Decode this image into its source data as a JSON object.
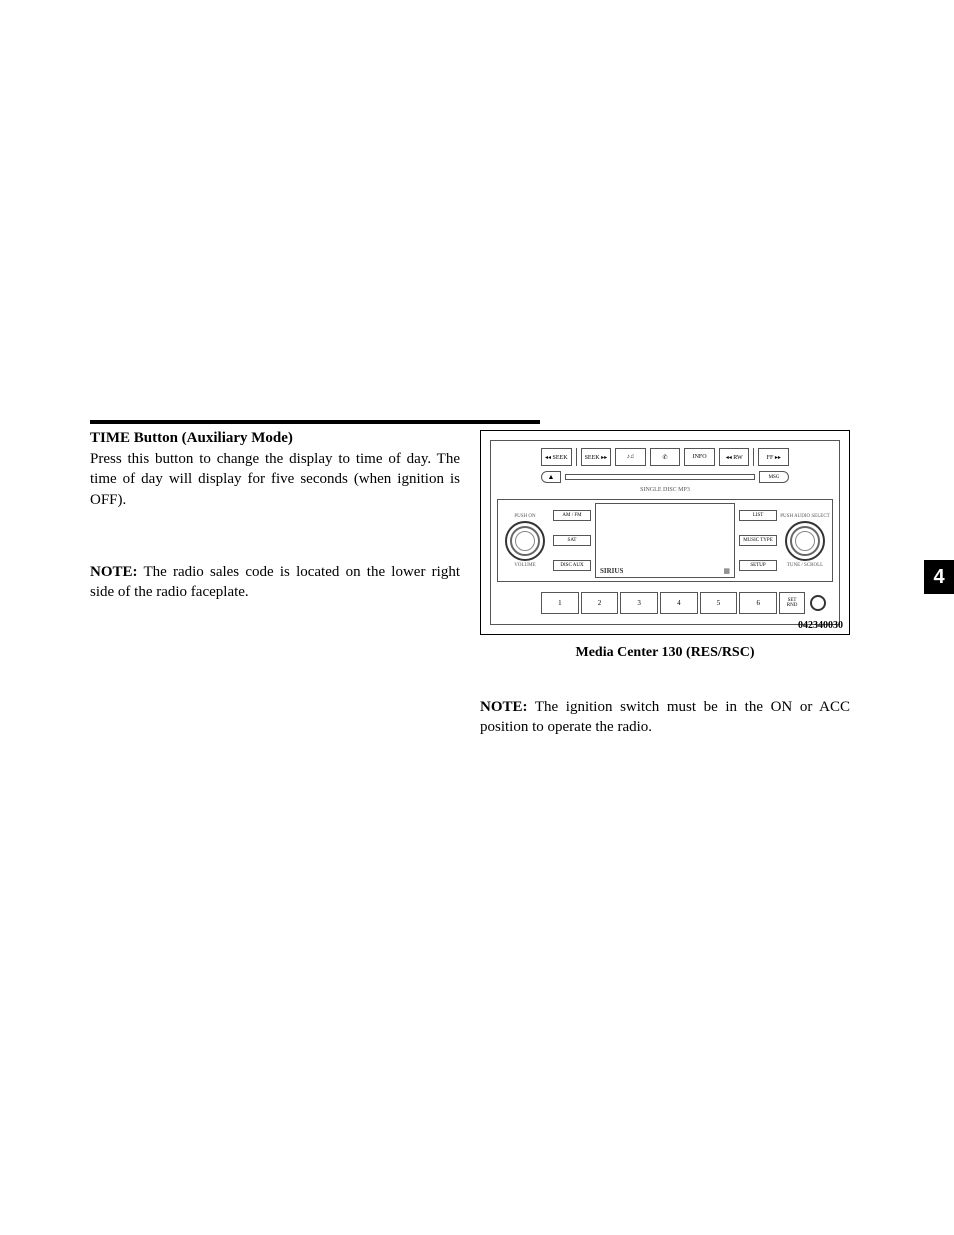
{
  "section": {
    "heading": "TIME Button (Auxiliary Mode)",
    "body": "Press this button to change the display to time of day. The time of day will display for five seconds (when ignition is OFF)."
  },
  "left_note": {
    "label": "NOTE:",
    "text": "  The radio sales code is located on the lower right side of the radio faceplate."
  },
  "radio": {
    "top_buttons": [
      "◂◂ SEEK",
      "SEEK ▸▸",
      "♪♫",
      "✆",
      "INFO",
      "◂◂ RW",
      "FF ▸▸"
    ],
    "eject": "▲",
    "load": "MSG",
    "sub_label": "SINGLE DISC   MP3",
    "left_knob_top": "PUSH ON",
    "left_knob_bot": "VOLUME",
    "right_knob_top": "PUSH AUDIO SELECT",
    "right_knob_bot": "TUNE / SCROLL",
    "left_modes": [
      "AM / FM",
      "SAT",
      "DISC\nAUX"
    ],
    "right_modes": [
      "LIST",
      "MUSIC\nTYPE",
      "SETUP"
    ],
    "screen_brand": "SIRIUS",
    "presets": [
      "1",
      "2",
      "3",
      "4",
      "5",
      "6"
    ],
    "set_btn_top": "SET",
    "set_btn_bot": "RND",
    "part_number": "042340030"
  },
  "caption": "Media Center 130 (RES/RSC)",
  "right_note": {
    "label": "NOTE:",
    "text": "  The ignition switch must be in the ON or ACC position to operate the radio."
  },
  "side_tab": "4"
}
